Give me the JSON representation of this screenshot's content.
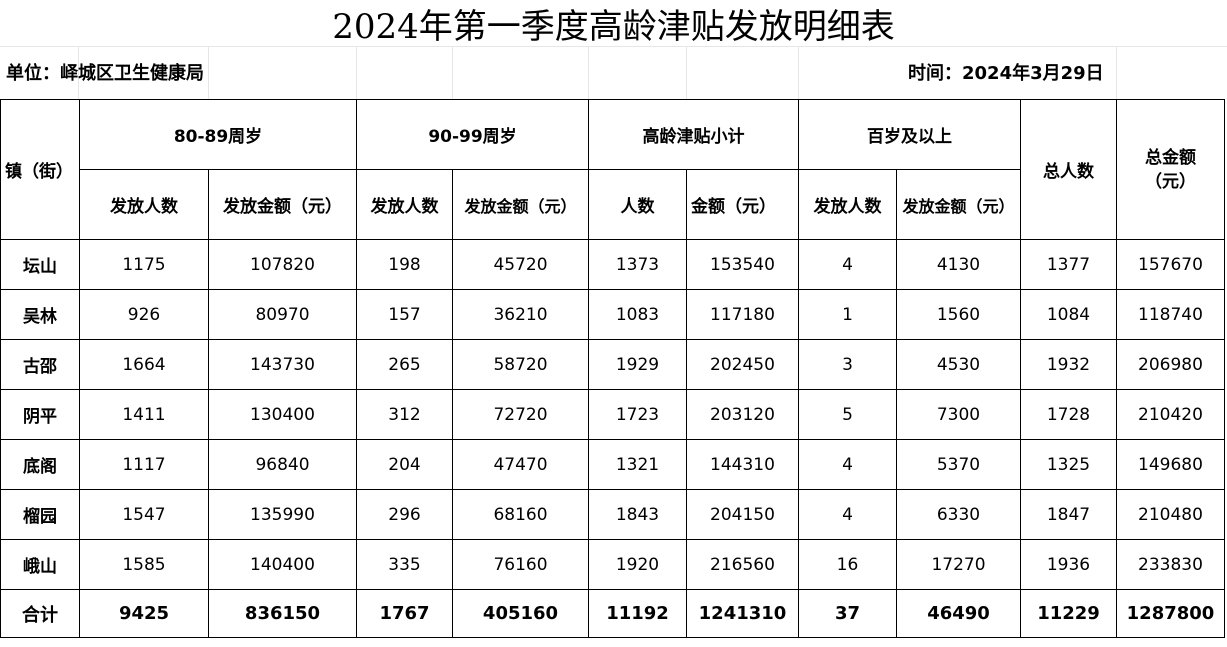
{
  "title": "2024年第一季度高龄津贴发放明细表",
  "unit": "单位：峄城区卫生健康局",
  "time": "时间：2024年3月29日",
  "headers": {
    "town": "镇（街）",
    "group_80_89": "80-89周岁",
    "group_90_99": "90-99周岁",
    "group_subtotal": "高龄津贴小计",
    "group_100": "百岁及以上",
    "total_people": "总人数",
    "total_amount": "总金额（元）",
    "issued_people": "发放人数",
    "issued_amount": "发放金额（元）",
    "people": "人数",
    "amount": "金额（元）"
  },
  "rows": [
    {
      "town": "坛山",
      "p80": "1175",
      "a80": "107820",
      "p90": "198",
      "a90": "45720",
      "ps": "1373",
      "as": "153540",
      "p100": "4",
      "a100": "4130",
      "tp": "1377",
      "ta": "157670"
    },
    {
      "town": "吴林",
      "p80": "926",
      "a80": "80970",
      "p90": "157",
      "a90": "36210",
      "ps": "1083",
      "as": "117180",
      "p100": "1",
      "a100": "1560",
      "tp": "1084",
      "ta": "118740"
    },
    {
      "town": "古邵",
      "p80": "1664",
      "a80": "143730",
      "p90": "265",
      "a90": "58720",
      "ps": "1929",
      "as": "202450",
      "p100": "3",
      "a100": "4530",
      "tp": "1932",
      "ta": "206980"
    },
    {
      "town": "阴平",
      "p80": "1411",
      "a80": "130400",
      "p90": "312",
      "a90": "72720",
      "ps": "1723",
      "as": "203120",
      "p100": "5",
      "a100": "7300",
      "tp": "1728",
      "ta": "210420"
    },
    {
      "town": "底阁",
      "p80": "1117",
      "a80": "96840",
      "p90": "204",
      "a90": "47470",
      "ps": "1321",
      "as": "144310",
      "p100": "4",
      "a100": "5370",
      "tp": "1325",
      "ta": "149680"
    },
    {
      "town": "榴园",
      "p80": "1547",
      "a80": "135990",
      "p90": "296",
      "a90": "68160",
      "ps": "1843",
      "as": "204150",
      "p100": "4",
      "a100": "6330",
      "tp": "1847",
      "ta": "210480"
    },
    {
      "town": "峨山",
      "p80": "1585",
      "a80": "140400",
      "p90": "335",
      "a90": "76160",
      "ps": "1920",
      "as": "216560",
      "p100": "16",
      "a100": "17270",
      "tp": "1936",
      "ta": "233830"
    }
  ],
  "total": {
    "town": "合计",
    "p80": "9425",
    "a80": "836150",
    "p90": "1767",
    "a90": "405160",
    "ps": "11192",
    "as": "1241310",
    "p100": "37",
    "a100": "46490",
    "tp": "11229",
    "ta": "1287800"
  }
}
